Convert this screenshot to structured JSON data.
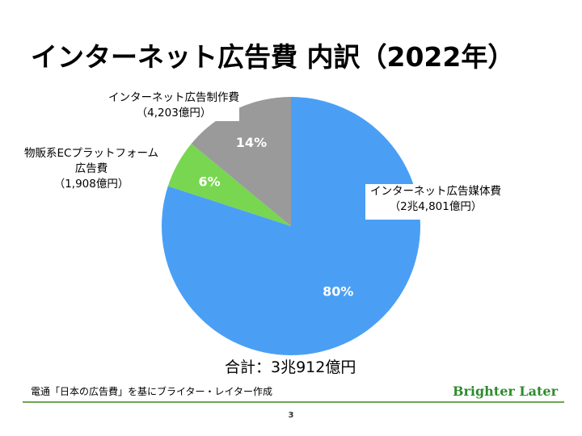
{
  "title": "インターネット広告費 内訳（2022年）",
  "chart_data": {
    "type": "pie",
    "categories": [
      "インターネット広告媒体費",
      "物販系ECプラットフォーム広告費",
      "インターネット広告制作費"
    ],
    "values": [
      80,
      6,
      14
    ],
    "amounts": [
      "2兆4,801億円",
      "1,908億円",
      "4,203億円"
    ],
    "percent_labels": [
      "80%",
      "6%",
      "14%"
    ],
    "colors": [
      "#4a9ff5",
      "#78d650",
      "#9a9a9a"
    ]
  },
  "labels": {
    "media": {
      "line1": "インターネット広告媒体費",
      "line2": "（2兆4,801億円）"
    },
    "ec": {
      "line1": "物販系ECプラットフォーム",
      "line2": "広告費",
      "line3": "（1,908億円）"
    },
    "production": {
      "line1": "インターネット広告制作費",
      "line2": "（4,203億円）"
    }
  },
  "total": "合計：3兆912億円",
  "source": "電通「日本の広告費」を基にブライター・レイター作成",
  "brand": "Brighter Later",
  "page_number": "3"
}
